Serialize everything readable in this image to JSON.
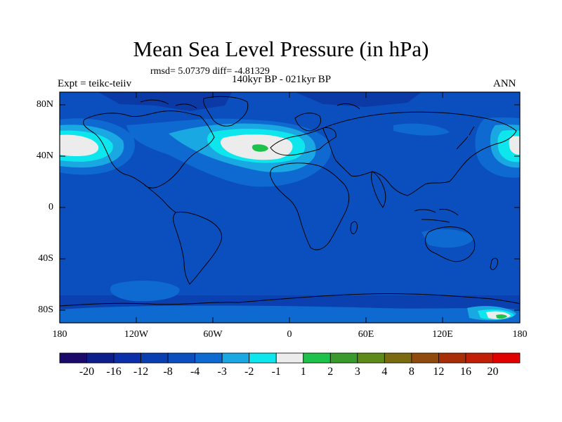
{
  "title": "Mean Sea Level Pressure (in hPa)",
  "subtitle_stats": "rmsd= 5.07379 diff= -4.81329",
  "subtitle_period": "140kyr BP - 021kyr BP",
  "label_left": "Expt = teikc-teiiv",
  "label_right": "ANN",
  "map": {
    "lat_ticks": [
      "80N",
      "40N",
      "0",
      "40S",
      "80S"
    ],
    "lon_ticks": [
      "180",
      "120W",
      "60W",
      "0",
      "60E",
      "120E",
      "180"
    ],
    "background_color": "#0a4fbd"
  },
  "colorbar": {
    "labels": [
      "-20",
      "-16",
      "-12",
      "-8",
      "-4",
      "-3",
      "-2",
      "-1",
      "1",
      "2",
      "3",
      "4",
      "8",
      "12",
      "16",
      "20"
    ],
    "colors": [
      "#1c0a6a",
      "#0d1e8a",
      "#0b2fa8",
      "#0a3fb2",
      "#0a4fbd",
      "#0e6ad0",
      "#1aa8e2",
      "#0de6ec",
      "#ececec",
      "#1ec24a",
      "#3a9a2e",
      "#5e8a1a",
      "#7a6a10",
      "#8f4a0c",
      "#a82e08",
      "#c21e06",
      "#e00000"
    ]
  }
}
